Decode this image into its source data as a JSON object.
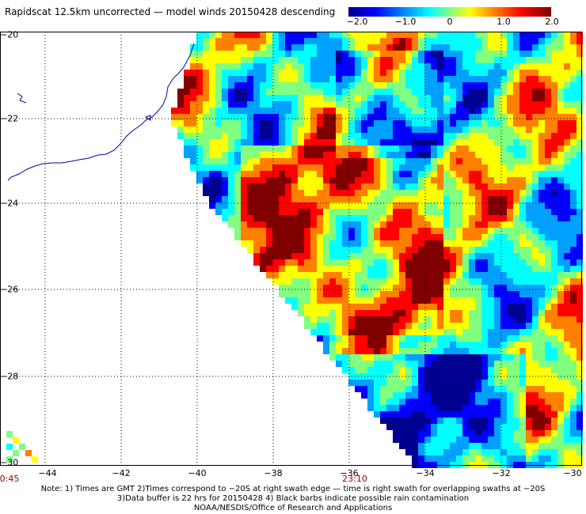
{
  "title": "Rapidscat 12.5km uncorrected — model winds 20150428 descending",
  "colorbar": {
    "labels": [
      "−2.0",
      "−1.0",
      "0",
      "1.0",
      "2.0"
    ],
    "colors": [
      "#000090",
      "#0000ff",
      "#00a0ff",
      "#00ffff",
      "#80ff80",
      "#ffff00",
      "#ff8000",
      "#ff0000",
      "#800000"
    ]
  },
  "map": {
    "lon_ticks": [
      "−44",
      "−42",
      "−40",
      "−38",
      "−36",
      "−34",
      "−32",
      "−30"
    ],
    "lat_ticks": [
      "−20",
      "−22",
      "−24",
      "−26",
      "−28",
      "−30"
    ],
    "swath_times": [
      "0:45",
      "23:10"
    ],
    "grid_color": "#000000",
    "coastline_color": "#0000a0"
  },
  "notes": [
    "Note: 1) Times are GMT 2)Times correspond to −20S at right swath edge — time is right swath for overlapping swaths at −20S",
    "3)Data buffer is 22 hrs for 20150428 4) Black barbs indicate possible rain contamination",
    "NOAA/NESDIS/Office of Research and Applications"
  ]
}
